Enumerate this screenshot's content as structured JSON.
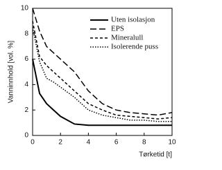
{
  "chart_data": {
    "type": "line",
    "x_label": "Tørketid [t]",
    "y_label": "Vanninnhold [vol. %]",
    "x": [
      0,
      0.5,
      1,
      1.5,
      2,
      3,
      4,
      5,
      6,
      7,
      8,
      9,
      10
    ],
    "series": [
      {
        "name": "Uten isolasjon",
        "color": "#000000",
        "dash": "solid",
        "values": [
          6,
          3.3,
          2.5,
          2,
          1.5,
          0.9,
          0.8,
          0.8,
          0.8,
          0.8,
          0.8,
          0.8,
          0.8
        ]
      },
      {
        "name": "EPS",
        "color": "#000000",
        "dash": "long",
        "values": [
          10,
          8.2,
          7,
          6.5,
          6,
          5,
          3.5,
          2.5,
          2,
          1.8,
          1.7,
          1.6,
          1.8
        ]
      },
      {
        "name": "Mineralull",
        "color": "#000000",
        "dash": "short",
        "values": [
          9,
          6.2,
          5.5,
          5,
          4.5,
          3.5,
          2.5,
          2,
          1.6,
          1.5,
          1.4,
          1.3,
          1.4
        ]
      },
      {
        "name": "Isolerende puss",
        "color": "#000000",
        "dash": "dotted",
        "values": [
          8.5,
          5.8,
          4.5,
          4.2,
          3.8,
          3,
          2,
          1.6,
          1.4,
          1.2,
          1.2,
          1.1,
          1.1
        ]
      }
    ],
    "xlim": [
      0,
      10
    ],
    "xticks": [
      0,
      2,
      4,
      6,
      8,
      10
    ],
    "ylim": [
      0,
      10
    ],
    "yticks": [
      0,
      2,
      4,
      6,
      8,
      10
    ],
    "grid": false,
    "legend": "upper right"
  }
}
